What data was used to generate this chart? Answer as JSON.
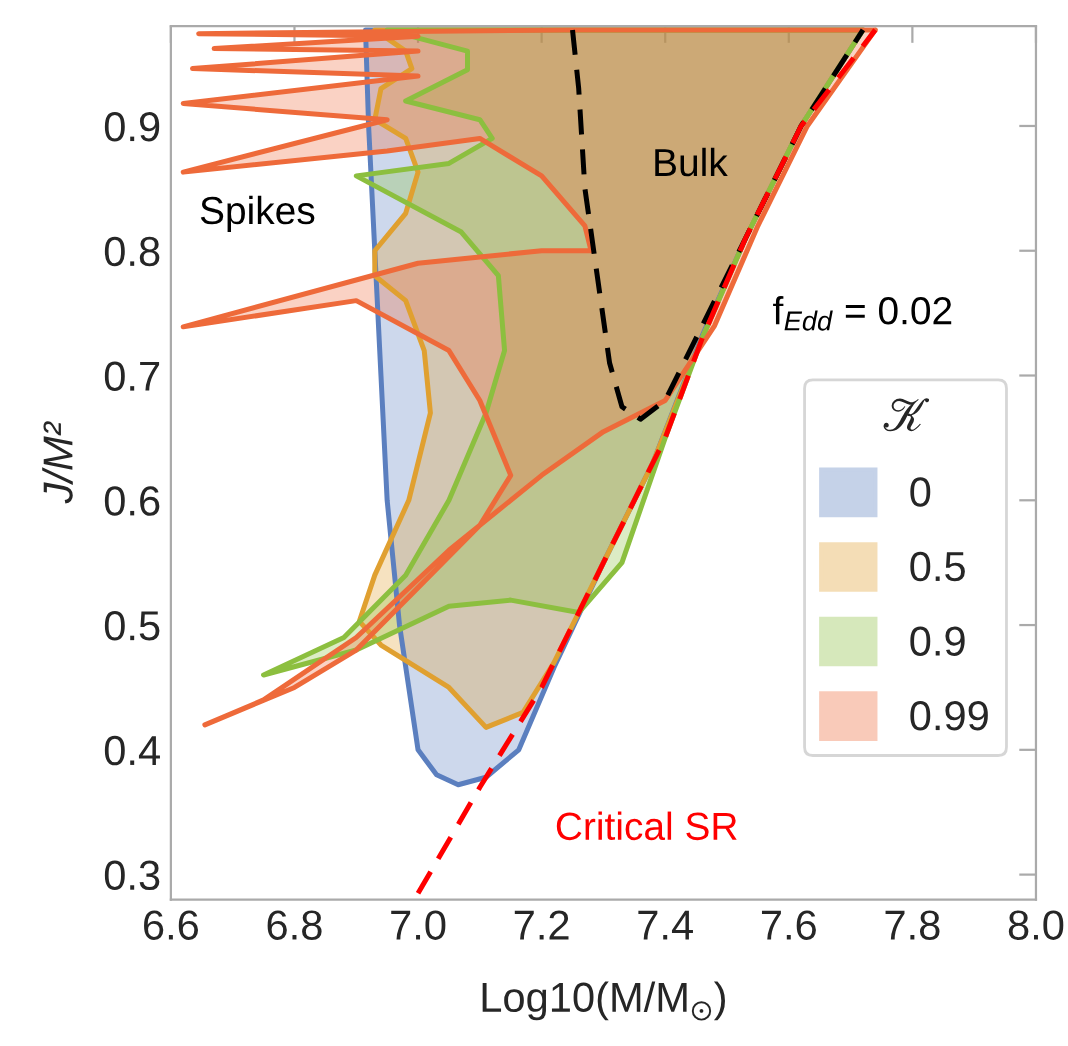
{
  "chart_data": {
    "type": "area",
    "xlabel": "Log10(M/M$_{⊙}$)",
    "ylabel": "J/M²",
    "legend_title": "𝒦",
    "legend": "right",
    "xlim": [
      6.6,
      8.0
    ],
    "ylim": [
      0.28,
      0.98
    ],
    "xticks": [
      6.6,
      6.8,
      {
        "value": 7.0,
        "label": "7.0"
      },
      7.2,
      7.4,
      7.6,
      7.8,
      {
        "value": 8.0,
        "label": "8.0"
      }
    ],
    "yticks": [
      0.3,
      0.4,
      0.5,
      0.6,
      0.7,
      0.8,
      0.9
    ],
    "grid": false,
    "annotations": [
      "Spikes",
      "Bulk",
      "f$_{Edd}$ = 0.02",
      "Critical SR"
    ],
    "series": [
      {
        "name": "0",
        "color": "#5b7fbf",
        "x": [
          6.915,
          6.92,
          6.94,
          6.95,
          6.97,
          7.0,
          7.03,
          7.065,
          7.11,
          7.163,
          7.22,
          7.3,
          7.38,
          7.46,
          7.53,
          7.62,
          7.72
        ],
        "values": [
          0.977,
          0.9,
          0.7,
          0.6,
          0.5,
          0.4,
          0.38,
          0.372,
          0.378,
          0.4,
          0.466,
          0.55,
          0.63,
          0.732,
          0.81,
          0.9,
          0.977
        ]
      },
      {
        "name": "0.5",
        "color": "#e0a030",
        "x": [
          7.72,
          6.93,
          6.98,
          6.99,
          6.94,
          6.93,
          6.98,
          7.0,
          6.98,
          6.93,
          6.93,
          6.98,
          7.01,
          7.02,
          6.985,
          6.93,
          6.905,
          6.94,
          7.05,
          7.11,
          7.17,
          7.22,
          7.3,
          7.38,
          7.46,
          7.53,
          7.62,
          7.72
        ],
        "values": [
          0.977,
          0.977,
          0.96,
          0.946,
          0.93,
          0.905,
          0.89,
          0.863,
          0.83,
          0.8,
          0.78,
          0.76,
          0.72,
          0.67,
          0.6,
          0.54,
          0.503,
          0.484,
          0.45,
          0.418,
          0.43,
          0.47,
          0.55,
          0.63,
          0.73,
          0.81,
          0.9,
          0.977
        ]
      },
      {
        "name": "0.9",
        "color": "#8cbf3f",
        "x": [
          7.72,
          6.95,
          7.08,
          7.08,
          6.98,
          7.1,
          7.12,
          7.05,
          6.9,
          7.07,
          7.13,
          7.14,
          7.11,
          7.05,
          6.98,
          6.88,
          6.75,
          6.9,
          7.05,
          7.15,
          7.26,
          7.33,
          7.4,
          7.46,
          7.53,
          7.62,
          7.72
        ],
        "values": [
          0.977,
          0.977,
          0.96,
          0.945,
          0.92,
          0.905,
          0.89,
          0.87,
          0.86,
          0.815,
          0.78,
          0.72,
          0.67,
          0.6,
          0.54,
          0.49,
          0.46,
          0.48,
          0.515,
          0.52,
          0.51,
          0.55,
          0.65,
          0.73,
          0.81,
          0.9,
          0.977
        ]
      },
      {
        "name": "0.99",
        "color": "#ee6a3a",
        "x": [
          7.74,
          7.25,
          6.645,
          7.0,
          6.67,
          7.0,
          6.635,
          7.0,
          6.62,
          6.95,
          6.62,
          6.95,
          7.1,
          7.2,
          7.27,
          7.28,
          7.2,
          7.0,
          6.62,
          6.9,
          7.05,
          7.1,
          7.15,
          7.1,
          7.0,
          6.9,
          6.8,
          6.655,
          6.75,
          6.9,
          7.05,
          7.2,
          7.3,
          7.4,
          7.48,
          7.55,
          7.63,
          7.74
        ],
        "values": [
          0.977,
          0.977,
          0.974,
          0.972,
          0.962,
          0.96,
          0.946,
          0.94,
          0.918,
          0.905,
          0.863,
          0.88,
          0.89,
          0.86,
          0.82,
          0.8,
          0.8,
          0.79,
          0.739,
          0.76,
          0.72,
          0.68,
          0.62,
          0.58,
          0.53,
          0.48,
          0.45,
          0.42,
          0.44,
          0.49,
          0.56,
          0.62,
          0.655,
          0.68,
          0.74,
          0.82,
          0.9,
          0.977
        ]
      },
      {
        "type": "line",
        "color": "#000000",
        "line_style": "dashed",
        "x": [
          7.25,
          7.26,
          7.27,
          7.29,
          7.31,
          7.33,
          7.36,
          7.4,
          7.45,
          7.53,
          7.62,
          7.72
        ],
        "values": [
          0.977,
          0.93,
          0.85,
          0.78,
          0.71,
          0.675,
          0.665,
          0.68,
          0.73,
          0.81,
          0.9,
          0.977
        ]
      },
      {
        "type": "line",
        "color": "#ff0000",
        "line_style": "dashed",
        "x": [
          7.0,
          7.1,
          7.2,
          7.3,
          7.4,
          7.46,
          7.53,
          7.62,
          7.74
        ],
        "values": [
          0.285,
          0.37,
          0.45,
          0.55,
          0.65,
          0.73,
          0.81,
          0.9,
          0.977
        ]
      }
    ]
  }
}
